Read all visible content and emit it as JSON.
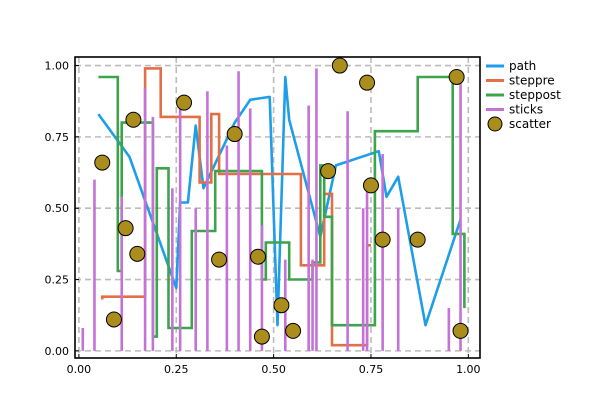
{
  "chart_data": {
    "type": "line",
    "title": "",
    "xlabel": "",
    "ylabel": "",
    "xlim": [
      -0.01,
      1.03
    ],
    "ylim": [
      -0.025,
      1.03
    ],
    "x_ticks": [
      0.0,
      0.25,
      0.5,
      0.75,
      1.0
    ],
    "x_tick_labels": [
      "0.00",
      "0.25",
      "0.50",
      "0.75",
      "1.00"
    ],
    "y_ticks": [
      0.0,
      0.25,
      0.5,
      0.75,
      1.0
    ],
    "y_tick_labels": [
      "0.00",
      "0.25",
      "0.50",
      "0.75",
      "1.00"
    ],
    "grid": true,
    "grid_style": "dashed",
    "legend_position": "outside-top-right",
    "series": [
      {
        "name": "path",
        "kind": "line",
        "color": "#1f9ee8",
        "points": [
          [
            0.05,
            0.83
          ],
          [
            0.13,
            0.68
          ],
          [
            0.25,
            0.22
          ],
          [
            0.26,
            0.52
          ],
          [
            0.28,
            0.52
          ],
          [
            0.3,
            0.79
          ],
          [
            0.32,
            0.57
          ],
          [
            0.4,
            0.8
          ],
          [
            0.44,
            0.88
          ],
          [
            0.49,
            0.89
          ],
          [
            0.51,
            0.09
          ],
          [
            0.53,
            0.96
          ],
          [
            0.54,
            0.81
          ],
          [
            0.62,
            0.4
          ],
          [
            0.66,
            0.65
          ],
          [
            0.77,
            0.7
          ],
          [
            0.79,
            0.54
          ],
          [
            0.82,
            0.61
          ],
          [
            0.89,
            0.09
          ],
          [
            0.98,
            0.46
          ]
        ]
      },
      {
        "name": "steppre",
        "kind": "steppre",
        "color": "#e26f46",
        "points": [
          [
            0.06,
            0.18
          ],
          [
            0.08,
            0.19
          ],
          [
            0.17,
            0.19
          ],
          [
            0.18,
            0.99
          ],
          [
            0.21,
            0.99
          ],
          [
            0.31,
            0.82
          ],
          [
            0.34,
            0.59
          ],
          [
            0.36,
            0.83
          ],
          [
            0.4,
            0.62
          ],
          [
            0.57,
            0.62
          ],
          [
            0.58,
            0.3
          ],
          [
            0.63,
            0.3
          ],
          [
            0.63,
            0.55
          ],
          [
            0.65,
            0.55
          ],
          [
            0.71,
            0.02
          ],
          [
            0.74,
            0.02
          ],
          [
            0.75,
            0.37
          ]
        ]
      },
      {
        "name": "steppost",
        "kind": "steppost",
        "color": "#3da44d",
        "points": [
          [
            0.05,
            0.96
          ],
          [
            0.1,
            0.28
          ],
          [
            0.11,
            0.8
          ],
          [
            0.18,
            0.8
          ],
          [
            0.19,
            0.05
          ],
          [
            0.2,
            0.64
          ],
          [
            0.21,
            0.64
          ],
          [
            0.23,
            0.08
          ],
          [
            0.27,
            0.08
          ],
          [
            0.29,
            0.42
          ],
          [
            0.34,
            0.42
          ],
          [
            0.35,
            0.63
          ],
          [
            0.46,
            0.63
          ],
          [
            0.47,
            0.25
          ],
          [
            0.48,
            0.38
          ],
          [
            0.53,
            0.38
          ],
          [
            0.54,
            0.25
          ],
          [
            0.59,
            0.25
          ],
          [
            0.6,
            0.31
          ],
          [
            0.62,
            0.65
          ],
          [
            0.63,
            0.47
          ],
          [
            0.65,
            0.09
          ],
          [
            0.75,
            0.09
          ],
          [
            0.76,
            0.77
          ],
          [
            0.86,
            0.77
          ],
          [
            0.87,
            0.96
          ],
          [
            0.95,
            0.96
          ],
          [
            0.96,
            0.41
          ],
          [
            0.99,
            0.41
          ],
          [
            0.99,
            0.15
          ]
        ]
      },
      {
        "name": "sticks",
        "kind": "sticks",
        "color": "#c472d8",
        "points": [
          [
            0.01,
            0.08
          ],
          [
            0.04,
            0.6
          ],
          [
            0.11,
            0.54
          ],
          [
            0.17,
            0.92
          ],
          [
            0.19,
            0.82
          ],
          [
            0.24,
            0.57
          ],
          [
            0.26,
            0.87
          ],
          [
            0.3,
            0.5
          ],
          [
            0.33,
            0.91
          ],
          [
            0.38,
            0.72
          ],
          [
            0.41,
            0.98
          ],
          [
            0.44,
            0.85
          ],
          [
            0.47,
            0.44
          ],
          [
            0.53,
            0.32
          ],
          [
            0.59,
            0.86
          ],
          [
            0.6,
            0.32
          ],
          [
            0.61,
            0.99
          ],
          [
            0.69,
            0.84
          ],
          [
            0.73,
            0.5
          ],
          [
            0.74,
            0.59
          ],
          [
            0.78,
            0.69
          ],
          [
            0.82,
            0.5
          ],
          [
            0.95,
            0.15
          ],
          [
            0.98,
            0.95
          ]
        ]
      },
      {
        "name": "scatter",
        "kind": "scatter",
        "color": "#aa8d1c",
        "points": [
          [
            0.06,
            0.66
          ],
          [
            0.09,
            0.11
          ],
          [
            0.12,
            0.43
          ],
          [
            0.14,
            0.81
          ],
          [
            0.15,
            0.34
          ],
          [
            0.27,
            0.87
          ],
          [
            0.36,
            0.32
          ],
          [
            0.4,
            0.76
          ],
          [
            0.46,
            0.33
          ],
          [
            0.47,
            0.05
          ],
          [
            0.52,
            0.16
          ],
          [
            0.55,
            0.07
          ],
          [
            0.64,
            0.63
          ],
          [
            0.67,
            1.0
          ],
          [
            0.74,
            0.94
          ],
          [
            0.75,
            0.58
          ],
          [
            0.78,
            0.39
          ],
          [
            0.87,
            0.39
          ],
          [
            0.97,
            0.96
          ],
          [
            0.98,
            0.07
          ]
        ]
      }
    ]
  }
}
